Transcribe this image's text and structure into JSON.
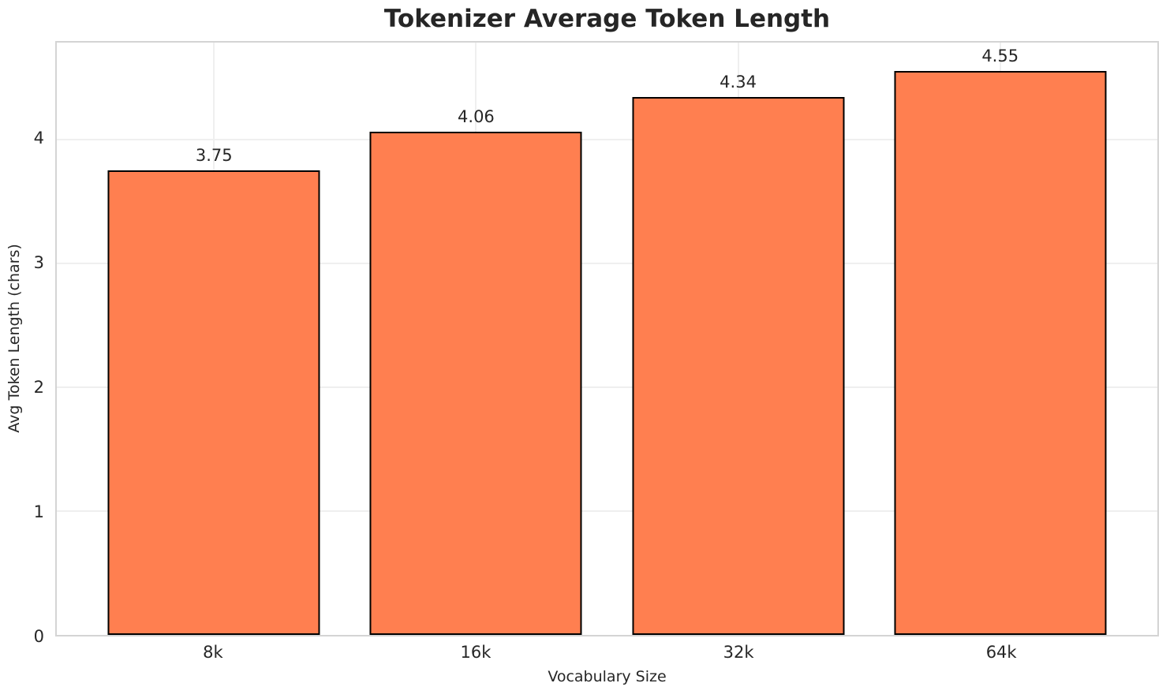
{
  "chart_data": {
    "type": "bar",
    "title": "Tokenizer Average Token Length",
    "xlabel": "Vocabulary Size",
    "ylabel": "Avg Token Length (chars)",
    "categories": [
      "8k",
      "16k",
      "32k",
      "64k"
    ],
    "values": [
      3.75,
      4.06,
      4.34,
      4.55
    ],
    "value_labels": [
      "3.75",
      "4.06",
      "4.34",
      "4.55"
    ],
    "yticks": [
      0,
      1,
      2,
      3,
      4
    ],
    "ytick_labels": [
      "0",
      "1",
      "2",
      "3",
      "4"
    ],
    "ylim": [
      0,
      4.78
    ],
    "grid": "both",
    "legend": "none",
    "colors": {
      "bar_fill": "#FF7F50",
      "bar_edge": "#000000",
      "grid": "#EFEFEF",
      "spine": "#D4D4D4",
      "text": "#262626",
      "background": "#FFFFFF"
    }
  }
}
